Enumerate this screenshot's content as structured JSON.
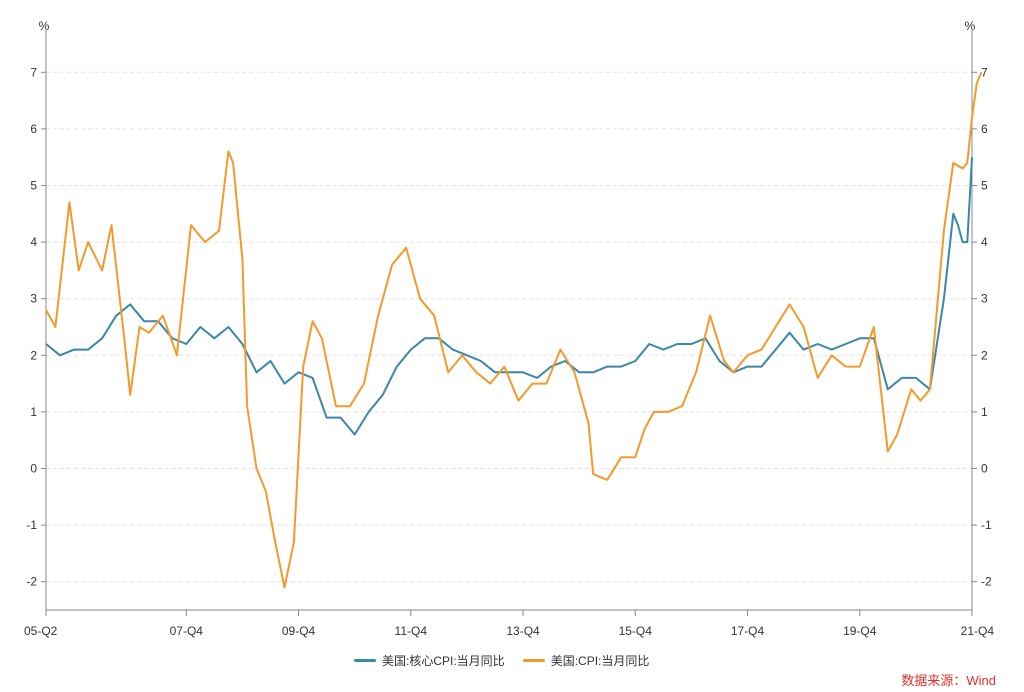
{
  "chart_data": {
    "type": "line",
    "unit_left": "%",
    "unit_right": "%",
    "ylim": [
      -2.5,
      7.5
    ],
    "yticks": [
      -2,
      -1,
      0,
      1,
      2,
      3,
      4,
      5,
      6,
      7
    ],
    "x_range": [
      "2005-04",
      "2021-10"
    ],
    "x_ticks": [
      {
        "label": "05-Q2",
        "date": "2005-04"
      },
      {
        "label": "07-Q4",
        "date": "2007-10"
      },
      {
        "label": "09-Q4",
        "date": "2009-10"
      },
      {
        "label": "11-Q4",
        "date": "2011-10"
      },
      {
        "label": "13-Q4",
        "date": "2013-10"
      },
      {
        "label": "15-Q4",
        "date": "2015-10"
      },
      {
        "label": "17-Q4",
        "date": "2017-10"
      },
      {
        "label": "19-Q4",
        "date": "2019-10"
      },
      {
        "label": "21-Q4",
        "date": "2021-10"
      }
    ],
    "grid": true,
    "legend_position": "bottom",
    "series": [
      {
        "name": "美国:核心CPI:当月同比",
        "color": "#3a87a8",
        "points": [
          [
            "2005-04",
            2.2
          ],
          [
            "2005-07",
            2.0
          ],
          [
            "2005-10",
            2.1
          ],
          [
            "2006-01",
            2.1
          ],
          [
            "2006-04",
            2.3
          ],
          [
            "2006-07",
            2.7
          ],
          [
            "2006-10",
            2.9
          ],
          [
            "2007-01",
            2.6
          ],
          [
            "2007-04",
            2.6
          ],
          [
            "2007-07",
            2.3
          ],
          [
            "2007-10",
            2.2
          ],
          [
            "2008-01",
            2.5
          ],
          [
            "2008-04",
            2.3
          ],
          [
            "2008-07",
            2.5
          ],
          [
            "2008-10",
            2.2
          ],
          [
            "2009-01",
            1.7
          ],
          [
            "2009-04",
            1.9
          ],
          [
            "2009-07",
            1.5
          ],
          [
            "2009-10",
            1.7
          ],
          [
            "2010-01",
            1.6
          ],
          [
            "2010-04",
            0.9
          ],
          [
            "2010-07",
            0.9
          ],
          [
            "2010-10",
            0.6
          ],
          [
            "2011-01",
            1.0
          ],
          [
            "2011-04",
            1.3
          ],
          [
            "2011-07",
            1.8
          ],
          [
            "2011-10",
            2.1
          ],
          [
            "2012-01",
            2.3
          ],
          [
            "2012-04",
            2.3
          ],
          [
            "2012-07",
            2.1
          ],
          [
            "2012-10",
            2.0
          ],
          [
            "2013-01",
            1.9
          ],
          [
            "2013-04",
            1.7
          ],
          [
            "2013-07",
            1.7
          ],
          [
            "2013-10",
            1.7
          ],
          [
            "2014-01",
            1.6
          ],
          [
            "2014-04",
            1.8
          ],
          [
            "2014-07",
            1.9
          ],
          [
            "2014-10",
            1.7
          ],
          [
            "2015-01",
            1.7
          ],
          [
            "2015-04",
            1.8
          ],
          [
            "2015-07",
            1.8
          ],
          [
            "2015-10",
            1.9
          ],
          [
            "2016-01",
            2.2
          ],
          [
            "2016-04",
            2.1
          ],
          [
            "2016-07",
            2.2
          ],
          [
            "2016-10",
            2.2
          ],
          [
            "2017-01",
            2.3
          ],
          [
            "2017-04",
            1.9
          ],
          [
            "2017-07",
            1.7
          ],
          [
            "2017-10",
            1.8
          ],
          [
            "2018-01",
            1.8
          ],
          [
            "2018-04",
            2.1
          ],
          [
            "2018-07",
            2.4
          ],
          [
            "2018-10",
            2.1
          ],
          [
            "2019-01",
            2.2
          ],
          [
            "2019-04",
            2.1
          ],
          [
            "2019-07",
            2.2
          ],
          [
            "2019-10",
            2.3
          ],
          [
            "2020-01",
            2.3
          ],
          [
            "2020-04",
            1.4
          ],
          [
            "2020-07",
            1.6
          ],
          [
            "2020-10",
            1.6
          ],
          [
            "2021-01",
            1.4
          ],
          [
            "2021-04",
            3.0
          ],
          [
            "2021-06",
            4.5
          ],
          [
            "2021-07",
            4.3
          ],
          [
            "2021-08",
            4.0
          ],
          [
            "2021-09",
            4.0
          ],
          [
            "2021-10",
            5.5
          ]
        ]
      },
      {
        "name": "美国:CPI:当月同比",
        "color": "#f39a2b",
        "points": [
          [
            "2005-04",
            2.8
          ],
          [
            "2005-06",
            2.5
          ],
          [
            "2005-09",
            4.7
          ],
          [
            "2005-11",
            3.5
          ],
          [
            "2006-01",
            4.0
          ],
          [
            "2006-04",
            3.5
          ],
          [
            "2006-06",
            4.3
          ],
          [
            "2006-09",
            2.1
          ],
          [
            "2006-10",
            1.3
          ],
          [
            "2006-12",
            2.5
          ],
          [
            "2007-02",
            2.4
          ],
          [
            "2007-05",
            2.7
          ],
          [
            "2007-08",
            2.0
          ],
          [
            "2007-11",
            4.3
          ],
          [
            "2008-02",
            4.0
          ],
          [
            "2008-05",
            4.2
          ],
          [
            "2008-07",
            5.6
          ],
          [
            "2008-08",
            5.4
          ],
          [
            "2008-10",
            3.7
          ],
          [
            "2008-11",
            1.1
          ],
          [
            "2009-01",
            0.0
          ],
          [
            "2009-03",
            -0.4
          ],
          [
            "2009-05",
            -1.3
          ],
          [
            "2009-07",
            -2.1
          ],
          [
            "2009-09",
            -1.3
          ],
          [
            "2009-11",
            1.8
          ],
          [
            "2010-01",
            2.6
          ],
          [
            "2010-03",
            2.3
          ],
          [
            "2010-06",
            1.1
          ],
          [
            "2010-09",
            1.1
          ],
          [
            "2010-12",
            1.5
          ],
          [
            "2011-03",
            2.7
          ],
          [
            "2011-06",
            3.6
          ],
          [
            "2011-09",
            3.9
          ],
          [
            "2011-12",
            3.0
          ],
          [
            "2012-03",
            2.7
          ],
          [
            "2012-06",
            1.7
          ],
          [
            "2012-09",
            2.0
          ],
          [
            "2012-12",
            1.7
          ],
          [
            "2013-03",
            1.5
          ],
          [
            "2013-06",
            1.8
          ],
          [
            "2013-09",
            1.2
          ],
          [
            "2013-12",
            1.5
          ],
          [
            "2014-03",
            1.5
          ],
          [
            "2014-06",
            2.1
          ],
          [
            "2014-09",
            1.7
          ],
          [
            "2014-12",
            0.8
          ],
          [
            "2015-01",
            -0.1
          ],
          [
            "2015-04",
            -0.2
          ],
          [
            "2015-07",
            0.2
          ],
          [
            "2015-10",
            0.2
          ],
          [
            "2015-12",
            0.7
          ],
          [
            "2016-02",
            1.0
          ],
          [
            "2016-05",
            1.0
          ],
          [
            "2016-08",
            1.1
          ],
          [
            "2016-11",
            1.7
          ],
          [
            "2017-02",
            2.7
          ],
          [
            "2017-05",
            1.9
          ],
          [
            "2017-07",
            1.7
          ],
          [
            "2017-10",
            2.0
          ],
          [
            "2018-01",
            2.1
          ],
          [
            "2018-04",
            2.5
          ],
          [
            "2018-07",
            2.9
          ],
          [
            "2018-10",
            2.5
          ],
          [
            "2019-01",
            1.6
          ],
          [
            "2019-04",
            2.0
          ],
          [
            "2019-07",
            1.8
          ],
          [
            "2019-10",
            1.8
          ],
          [
            "2020-01",
            2.5
          ],
          [
            "2020-04",
            0.3
          ],
          [
            "2020-06",
            0.6
          ],
          [
            "2020-09",
            1.4
          ],
          [
            "2020-11",
            1.2
          ],
          [
            "2021-01",
            1.4
          ],
          [
            "2021-04",
            4.2
          ],
          [
            "2021-06",
            5.4
          ],
          [
            "2021-08",
            5.3
          ],
          [
            "2021-09",
            5.4
          ],
          [
            "2021-10",
            6.2
          ],
          [
            "2021-11",
            6.8
          ],
          [
            "2021-12",
            7.0
          ]
        ]
      }
    ]
  },
  "legend": {
    "core": "美国:核心CPI:当月同比",
    "headline": "美国:CPI:当月同比"
  },
  "source": "数据来源：Wind"
}
